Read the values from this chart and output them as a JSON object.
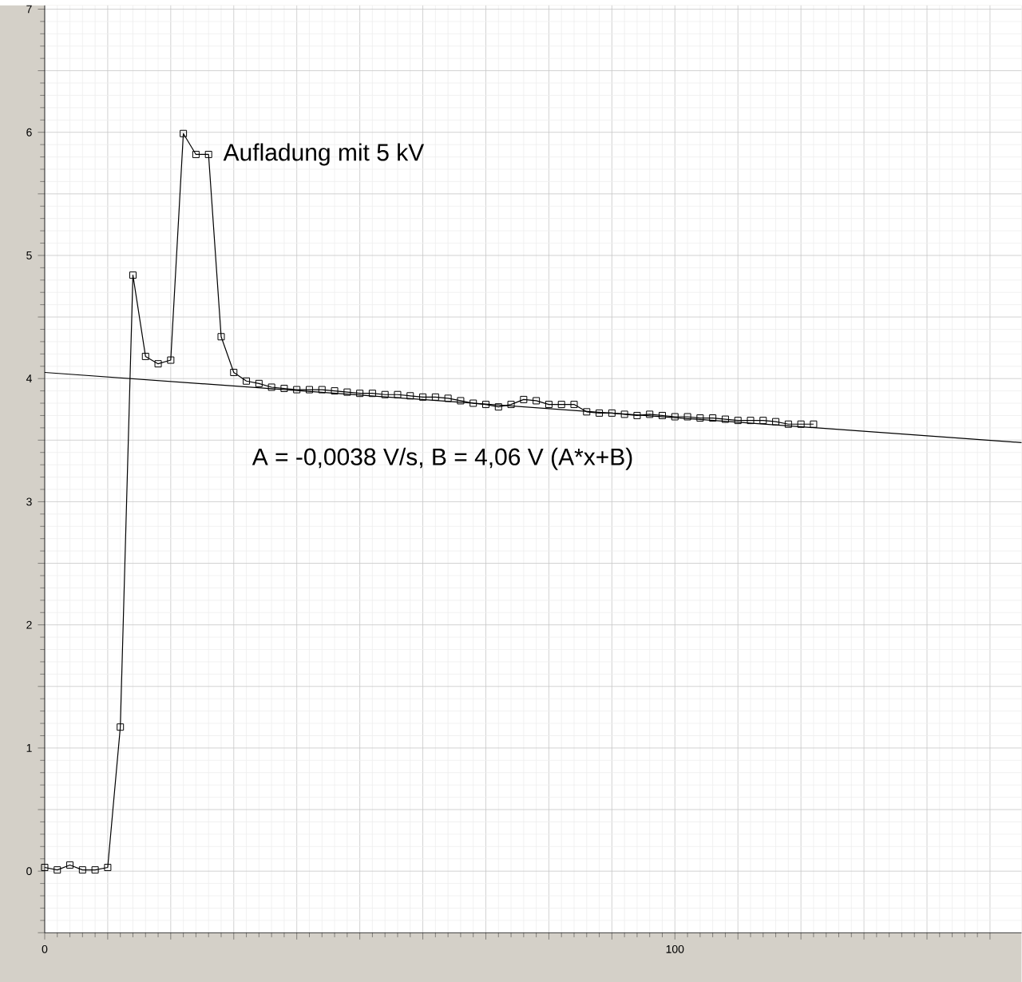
{
  "chart_data": {
    "type": "line",
    "x": [
      0,
      2,
      4,
      6,
      8,
      10,
      12,
      14,
      16,
      18,
      20,
      22,
      24,
      26,
      28,
      30,
      32,
      34,
      36,
      38,
      40,
      42,
      44,
      46,
      48,
      50,
      52,
      54,
      56,
      58,
      60,
      62,
      64,
      66,
      68,
      70,
      72,
      74,
      76,
      78,
      80,
      82,
      84,
      86,
      88,
      90,
      92,
      94,
      96,
      98,
      100,
      102,
      104,
      106,
      108,
      110,
      112,
      114,
      116,
      118,
      120,
      122
    ],
    "series": [
      {
        "color": "#000000",
        "marker": "square",
        "values": [
          0.03,
          0.01,
          0.05,
          0.01,
          0.01,
          0.03,
          1.17,
          4.84,
          4.18,
          4.12,
          4.15,
          5.99,
          5.82,
          5.82,
          4.34,
          4.05,
          3.98,
          3.96,
          3.93,
          3.92,
          3.91,
          3.91,
          3.91,
          3.9,
          3.89,
          3.88,
          3.88,
          3.87,
          3.87,
          3.86,
          3.85,
          3.85,
          3.84,
          3.82,
          3.8,
          3.79,
          3.77,
          3.79,
          3.83,
          3.82,
          3.79,
          3.79,
          3.79,
          3.73,
          3.72,
          3.72,
          3.71,
          3.7,
          3.71,
          3.7,
          3.69,
          3.69,
          3.68,
          3.68,
          3.67,
          3.66,
          3.66,
          3.66,
          3.65,
          3.63,
          3.63,
          3.63
        ]
      },
      {
        "type": "line",
        "color": "#000000",
        "marker": "none",
        "x": [
          0,
          155
        ],
        "values": [
          4.05,
          3.48
        ]
      }
    ],
    "xlim": [
      0,
      155
    ],
    "ylim": [
      -0.5,
      7.03
    ],
    "xticks": [
      0,
      {
        "value": 10,
        "label": null
      },
      {
        "value": 20,
        "label": null
      },
      {
        "value": 30,
        "label": null
      },
      {
        "value": 40,
        "label": null
      },
      {
        "value": 50,
        "label": null
      },
      {
        "value": 60,
        "label": null
      },
      {
        "value": 70,
        "label": null
      },
      {
        "value": 80,
        "label": null
      },
      {
        "value": 90,
        "label": null
      },
      100,
      {
        "value": 110,
        "label": null
      },
      {
        "value": 120,
        "label": null
      },
      {
        "value": 130,
        "label": null
      },
      {
        "value": 140,
        "label": null
      },
      {
        "value": 150,
        "label": null
      }
    ],
    "yticks": [
      {
        "value": -0.5,
        "label": null
      },
      0,
      {
        "value": 0.5,
        "label": null
      },
      1,
      {
        "value": 1.5,
        "label": null
      },
      2,
      {
        "value": 2.5,
        "label": null
      },
      3,
      {
        "value": 3.5,
        "label": null
      },
      4,
      {
        "value": 4.5,
        "label": null
      },
      5,
      {
        "value": 5.5,
        "label": null
      },
      6,
      {
        "value": 6.5,
        "label": null
      },
      7
    ],
    "grid": true,
    "line_style": "solid",
    "annotations": [
      {
        "text": "Aufladung mit 5 kV",
        "x": 26,
        "y": 5.82
      },
      "A = -0,0038 V/s,    B = 4,06 V    (A*x+B)"
    ]
  }
}
